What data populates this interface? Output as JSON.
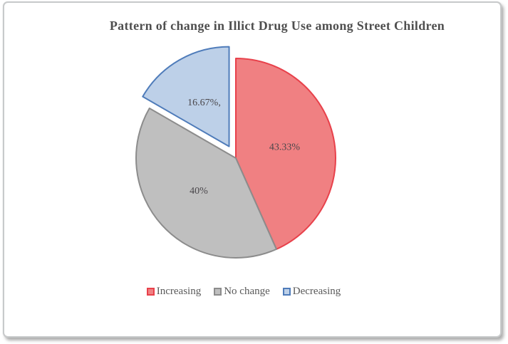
{
  "frame": {
    "background": "#ffffff",
    "border_color": "#c8cacb"
  },
  "chart_data": {
    "type": "pie",
    "title": "Pattern of change in Illict Drug Use among Street Children",
    "title_color": "#4f4f4f",
    "categories": [
      "Increasing",
      "No change",
      "Decreasing"
    ],
    "values": [
      43.33,
      40,
      16.67
    ],
    "slice_labels": [
      "43.33%",
      "40%",
      "16.67%,"
    ],
    "colors": [
      {
        "fill": "#f08082",
        "stroke": "#e8414b"
      },
      {
        "fill": "#bfbfbf",
        "stroke": "#8c8c8c"
      },
      {
        "fill": "#bdd0e8",
        "stroke": "#4f7cba"
      }
    ],
    "start_angle_deg": 0,
    "clockwise": true,
    "explode": [
      0,
      0,
      0.135
    ],
    "label_color": "#4a474b",
    "legend_position": "bottom",
    "legend_text_color": "#595959"
  }
}
